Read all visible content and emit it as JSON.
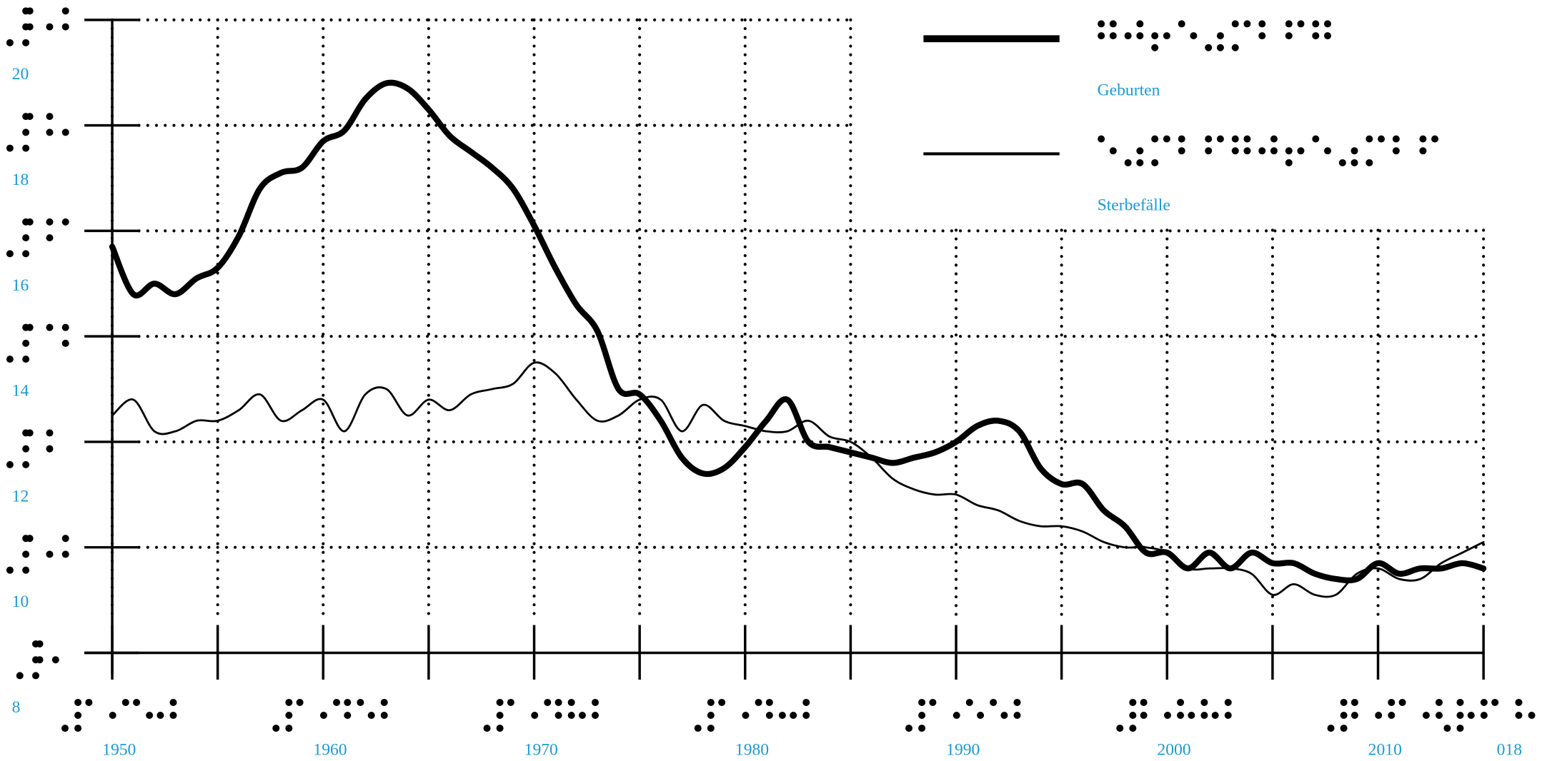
{
  "chart_data": {
    "type": "line",
    "x": [
      1950,
      1951,
      1952,
      1953,
      1954,
      1955,
      1956,
      1957,
      1958,
      1959,
      1960,
      1961,
      1962,
      1963,
      1964,
      1965,
      1966,
      1967,
      1968,
      1969,
      1970,
      1971,
      1972,
      1973,
      1974,
      1975,
      1976,
      1977,
      1978,
      1979,
      1980,
      1981,
      1982,
      1983,
      1984,
      1985,
      1986,
      1987,
      1988,
      1989,
      1990,
      1991,
      1992,
      1993,
      1994,
      1995,
      1996,
      1997,
      1998,
      1999,
      2000,
      2001,
      2002,
      2003,
      2004,
      2005,
      2006,
      2007,
      2008,
      2009,
      2010,
      2011,
      2012,
      2013,
      2014,
      2015
    ],
    "series": [
      {
        "name": "Geburten",
        "color": "#000000",
        "width": 6,
        "values": [
          15.7,
          14.8,
          15.0,
          14.8,
          15.1,
          15.3,
          15.9,
          16.8,
          17.1,
          17.2,
          17.7,
          17.9,
          18.5,
          18.8,
          18.7,
          18.3,
          17.8,
          17.5,
          17.2,
          16.8,
          16.1,
          15.3,
          14.6,
          14.1,
          13.0,
          12.9,
          12.4,
          11.7,
          11.4,
          11.5,
          11.9,
          12.4,
          12.8,
          12.0,
          11.9,
          11.8,
          11.7,
          11.6,
          11.7,
          11.8,
          12.0,
          12.3,
          12.4,
          12.2,
          11.5,
          11.2,
          11.2,
          10.7,
          10.4,
          9.9,
          9.9,
          9.6,
          9.9,
          9.6,
          9.9,
          9.7,
          9.7,
          9.5,
          9.4,
          9.4,
          9.7,
          9.5,
          9.6,
          9.6,
          9.7,
          9.6
        ]
      },
      {
        "name": "Sterbefälle",
        "color": "#000000",
        "width": 2,
        "values": [
          12.5,
          12.8,
          12.2,
          12.2,
          12.4,
          12.4,
          12.6,
          12.9,
          12.4,
          12.6,
          12.8,
          12.2,
          12.9,
          13.0,
          12.5,
          12.8,
          12.6,
          12.9,
          13.0,
          13.1,
          13.5,
          13.3,
          12.8,
          12.4,
          12.5,
          12.8,
          12.8,
          12.2,
          12.7,
          12.4,
          12.3,
          12.2,
          12.2,
          12.4,
          12.1,
          12.0,
          11.7,
          11.3,
          11.1,
          11.0,
          11.0,
          10.8,
          10.7,
          10.5,
          10.4,
          10.4,
          10.3,
          10.1,
          10.0,
          10.0,
          9.9,
          9.6,
          9.6,
          9.6,
          9.5,
          9.1,
          9.3,
          9.1,
          9.1,
          9.5,
          9.6,
          9.4,
          9.4,
          9.7,
          9.9,
          10.1
        ]
      }
    ],
    "xlim": [
      1950,
      2015
    ],
    "xticks": [
      1950,
      1960,
      1970,
      1980,
      1990,
      2000,
      2010,
      {
        "value": 2018,
        "label": "018"
      }
    ],
    "xminor": [
      1955,
      1965,
      1975,
      1985,
      1995,
      2005,
      2015
    ],
    "ylim": [
      8,
      20
    ],
    "yticks": [
      8,
      10,
      12,
      14,
      16,
      18,
      20
    ],
    "grid": true,
    "legend": "upper right"
  }
}
